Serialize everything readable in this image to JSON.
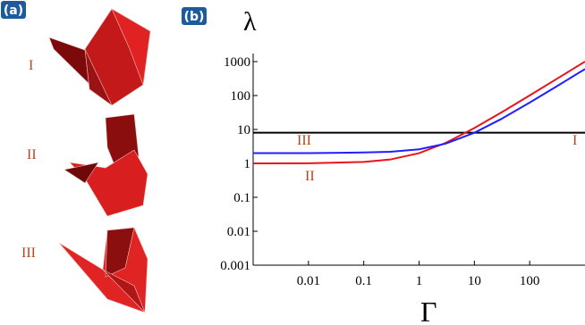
{
  "panels": {
    "a": "(a)",
    "b": "(b)"
  },
  "panel_a": {
    "items": [
      "I",
      "II",
      "III"
    ]
  },
  "chart_data": {
    "type": "line",
    "x_label": "Γ",
    "y_label": "λ",
    "log_x": true,
    "log_y": true,
    "x": [
      0.001,
      0.01,
      0.1,
      0.3,
      1,
      3,
      10,
      30,
      100,
      300,
      1000
    ],
    "series": [
      {
        "name": "I",
        "color": "#000000",
        "values": [
          8,
          8,
          8,
          8,
          8,
          8,
          8,
          8,
          8,
          8,
          8
        ]
      },
      {
        "name": "II",
        "color": "#e8141c",
        "values": [
          1,
          1.01,
          1.1,
          1.3,
          2,
          4,
          11,
          31,
          101,
          301,
          1001
        ]
      },
      {
        "name": "III",
        "color": "#1f1fff",
        "values": [
          2,
          2,
          2.1,
          2.2,
          2.6,
          3.8,
          8,
          20,
          62,
          182,
          602
        ]
      }
    ],
    "xlim": [
      0.001,
      1000
    ],
    "ylim": [
      0.001,
      1000
    ],
    "xticks": [
      0.01,
      0.1,
      1,
      10,
      100
    ],
    "yticks": [
      0.001,
      0.01,
      0.1,
      1,
      10,
      100,
      1000
    ]
  }
}
